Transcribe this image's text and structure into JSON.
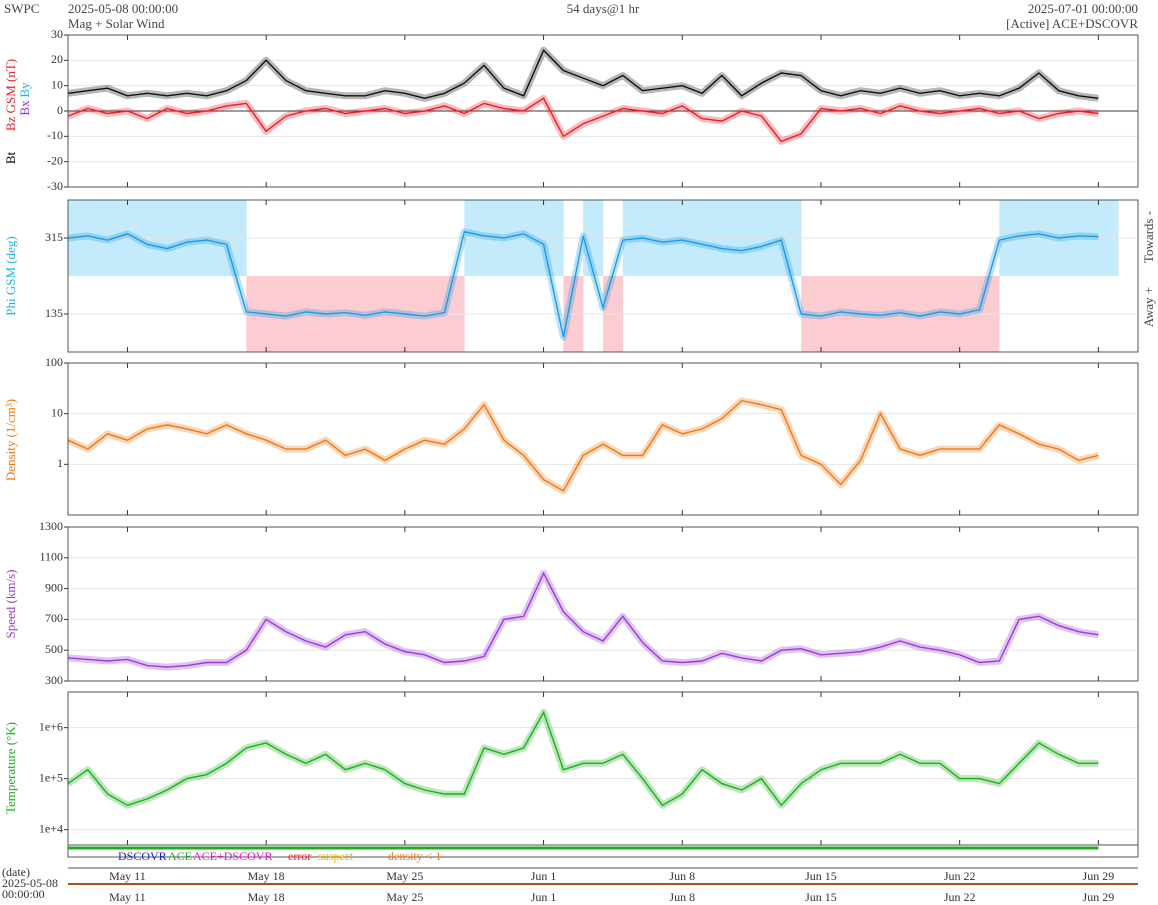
{
  "header": {
    "left": "SWPC",
    "start": "2025-05-08 00:00:00",
    "product": "Mag + Solar Wind",
    "span": "54 days@1 hr",
    "end": "2025-07-01 00:00:00",
    "source": "[Active] ACE+DSCOVR"
  },
  "chart_data": {
    "type": "line",
    "xlim": [
      "2025-05-08",
      "2025-07-01"
    ],
    "x": [
      "2025-05-08",
      "2025-05-09",
      "2025-05-10",
      "2025-05-11",
      "2025-05-12",
      "2025-05-13",
      "2025-05-14",
      "2025-05-15",
      "2025-05-16",
      "2025-05-17",
      "2025-05-18",
      "2025-05-19",
      "2025-05-20",
      "2025-05-21",
      "2025-05-22",
      "2025-05-23",
      "2025-05-24",
      "2025-05-25",
      "2025-05-26",
      "2025-05-27",
      "2025-05-28",
      "2025-05-29",
      "2025-05-30",
      "2025-05-31",
      "2025-06-01",
      "2025-06-02",
      "2025-06-03",
      "2025-06-04",
      "2025-06-05",
      "2025-06-06",
      "2025-06-07",
      "2025-06-08",
      "2025-06-09",
      "2025-06-10",
      "2025-06-11",
      "2025-06-12",
      "2025-06-13",
      "2025-06-14",
      "2025-06-15",
      "2025-06-16",
      "2025-06-17",
      "2025-06-18",
      "2025-06-19",
      "2025-06-20",
      "2025-06-21",
      "2025-06-22",
      "2025-06-23",
      "2025-06-24",
      "2025-06-25",
      "2025-06-26",
      "2025-06-27",
      "2025-06-28",
      "2025-06-29"
    ],
    "xticks": [
      {
        "value": "2025-05-11",
        "label": "May 11"
      },
      {
        "value": "2025-05-18",
        "label": "May 18"
      },
      {
        "value": "2025-05-25",
        "label": "May 25"
      },
      {
        "value": "2025-06-01",
        "label": "Jun 1"
      },
      {
        "value": "2025-06-08",
        "label": "Jun 8"
      },
      {
        "value": "2025-06-15",
        "label": "Jun 15"
      },
      {
        "value": "2025-06-22",
        "label": "Jun 22"
      },
      {
        "value": "2025-06-29",
        "label": "Jun 29"
      }
    ],
    "panels": [
      {
        "ylabels": [
          {
            "text": "Bt",
            "color": "#000000"
          },
          {
            "text": "Bz GSM (nT)",
            "color": "#e8202a"
          },
          {
            "text": "Bx",
            "color": "#8a2be2"
          },
          {
            "text": "By",
            "color": "#1eb4e6"
          }
        ],
        "ylim": [
          -30,
          30
        ],
        "yticks": [
          -30,
          -20,
          -10,
          0,
          10,
          20,
          30
        ],
        "log": false,
        "zero_line": true,
        "series": [
          {
            "color": "#e8202a",
            "values": [
              -2,
              1,
              -1,
              0,
              -3,
              1,
              -1,
              0,
              2,
              3,
              -8,
              -2,
              0,
              1,
              -1,
              0,
              1,
              -1,
              0,
              2,
              -1,
              3,
              1,
              0,
              5,
              -10,
              -5,
              -2,
              1,
              0,
              -1,
              2,
              -3,
              -4,
              0,
              -2,
              -12,
              -9,
              1,
              0,
              1,
              -1,
              2,
              0,
              -1,
              0,
              1,
              -1,
              0,
              -3,
              -1,
              0,
              -1
            ]
          },
          {
            "color": "#111111",
            "values": [
              7,
              8,
              9,
              6,
              7,
              6,
              7,
              6,
              8,
              12,
              20,
              12,
              8,
              7,
              6,
              6,
              8,
              7,
              5,
              7,
              11,
              18,
              9,
              6,
              24,
              16,
              13,
              10,
              14,
              8,
              9,
              10,
              7,
              14,
              6,
              11,
              15,
              14,
              8,
              6,
              8,
              7,
              9,
              7,
              8,
              6,
              7,
              6,
              9,
              15,
              8,
              6,
              5
            ]
          }
        ]
      },
      {
        "ylabels": [
          {
            "text": "Phi GSM (deg)",
            "color": "#1eb4e6"
          }
        ],
        "right_labels": [
          "Towards -",
          "Away +"
        ],
        "ylim": [
          45,
          405
        ],
        "yticks": [
          135,
          315
        ],
        "log": false,
        "sector_boundary": 225,
        "sector_colors": [
          "#c4ebfb",
          "#fbccd2"
        ],
        "series": [
          {
            "color": "#1e9be6",
            "values": [
              315,
              320,
              310,
              325,
              300,
              290,
              305,
              310,
              300,
              140,
              135,
              130,
              140,
              135,
              138,
              132,
              140,
              135,
              130,
              138,
              330,
              320,
              315,
              325,
              300,
              80,
              320,
              150,
              310,
              315,
              305,
              310,
              300,
              290,
              285,
              295,
              310,
              135,
              130,
              140,
              135,
              132,
              138,
              130,
              140,
              135,
              145,
              310,
              320,
              325,
              315,
              320,
              318
            ]
          }
        ]
      },
      {
        "ylabels": [
          {
            "text": "Density (1/cm³)",
            "color": "#f07814"
          }
        ],
        "ylim": [
          0.1,
          100
        ],
        "yticks": [
          1,
          10,
          100
        ],
        "log": true,
        "series": [
          {
            "color": "#f07814",
            "values": [
              3,
              2,
              4,
              3,
              5,
              6,
              5,
              4,
              6,
              4,
              3,
              2,
              2,
              3,
              1.5,
              2,
              1.2,
              2,
              3,
              2.5,
              5,
              15,
              3,
              1.5,
              0.5,
              0.3,
              1.5,
              2.5,
              1.5,
              1.5,
              6,
              4,
              5,
              8,
              18,
              15,
              12,
              1.5,
              1,
              0.4,
              1.2,
              10,
              2,
              1.5,
              2,
              2,
              2,
              6,
              4,
              2.5,
              2,
              1.2,
              1.5
            ]
          }
        ]
      },
      {
        "ylabels": [
          {
            "text": "Speed (km/s)",
            "color": "#9b3ad6"
          }
        ],
        "ylim": [
          300,
          1300
        ],
        "yticks": [
          300,
          500,
          700,
          900,
          1100,
          1300
        ],
        "log": false,
        "series": [
          {
            "color": "#9b3ad6",
            "values": [
              450,
              440,
              430,
              440,
              400,
              390,
              400,
              420,
              420,
              500,
              700,
              620,
              560,
              520,
              600,
              620,
              540,
              490,
              470,
              420,
              430,
              460,
              700,
              720,
              1000,
              750,
              620,
              560,
              720,
              550,
              430,
              420,
              430,
              480,
              450,
              430,
              500,
              510,
              470,
              480,
              490,
              520,
              560,
              520,
              500,
              470,
              420,
              430,
              700,
              720,
              660,
              620,
              600
            ]
          }
        ]
      },
      {
        "ylabels": [
          {
            "text": "Temperature (°K)",
            "color": "#1fae1f"
          }
        ],
        "ylim": [
          5000,
          5000000
        ],
        "yticks": [
          {
            "value": 10000,
            "label": "1e+4"
          },
          {
            "value": 100000,
            "label": "1e+5"
          },
          {
            "value": 1000000,
            "label": "1e+6"
          }
        ],
        "log": true,
        "series": [
          {
            "color": "#1fae1f",
            "values": [
              80000,
              150000,
              50000,
              30000,
              40000,
              60000,
              100000,
              120000,
              200000,
              400000,
              500000,
              300000,
              200000,
              300000,
              150000,
              200000,
              150000,
              80000,
              60000,
              50000,
              50000,
              400000,
              300000,
              400000,
              2000000,
              150000,
              200000,
              200000,
              300000,
              100000,
              30000,
              50000,
              150000,
              80000,
              60000,
              100000,
              30000,
              80000,
              150000,
              200000,
              200000,
              200000,
              300000,
              200000,
              200000,
              100000,
              100000,
              80000,
              200000,
              500000,
              300000,
              200000,
              200000
            ]
          }
        ]
      }
    ],
    "source_legend": [
      {
        "text": "DSCOVR",
        "color": "#2020c8"
      },
      {
        "text": "ACE",
        "color": "#1fae1f"
      },
      {
        "text": "ACE+DSCOVR",
        "color": "#e020c8"
      },
      {
        "text": "error",
        "color": "#e8202a"
      },
      {
        "text": "suspect",
        "color": "#e8b000"
      },
      {
        "text": "density < 1",
        "color": "#f07814"
      }
    ],
    "date_caption": [
      "(date)",
      "2025-05-08",
      "00:00:00"
    ]
  }
}
